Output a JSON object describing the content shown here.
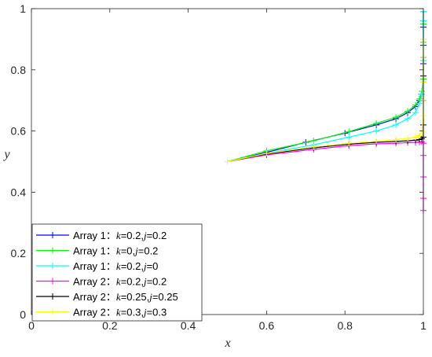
{
  "chart_data": {
    "type": "line",
    "xlabel": "x",
    "ylabel": "y",
    "xlim": [
      0,
      1
    ],
    "ylim": [
      0,
      1
    ],
    "xticks": [
      "0",
      "0.2",
      "0.4",
      "0.6",
      "0.8",
      "1"
    ],
    "yticks": [
      "0",
      "0.2",
      "0.4",
      "0.6",
      "0.8",
      "1"
    ],
    "grid": false,
    "legend_position": "bottom-left",
    "series": [
      {
        "legend": {
          "prefix": "Array 1：",
          "params": [
            [
              "k",
              "=0.2,"
            ],
            [
              "j",
              "=0.2"
            ]
          ]
        },
        "color": "#0000ff",
        "x": [
          0.5,
          0.6,
          0.7,
          0.8,
          0.88,
          0.93,
          0.96,
          0.98,
          0.99,
          0.995,
          1.0,
          1.0,
          1.0,
          1.0,
          1.0
        ],
        "y": [
          0.5,
          0.53,
          0.563,
          0.593,
          0.62,
          0.64,
          0.66,
          0.68,
          0.7,
          0.72,
          0.76,
          0.82,
          0.88,
          0.94,
          0.99
        ]
      },
      {
        "legend": {
          "prefix": "Array 1：",
          "params": [
            [
              "k",
              "=0,"
            ],
            [
              "j",
              "=0.2"
            ]
          ]
        },
        "color": "#00ff00",
        "x": [
          0.5,
          0.6,
          0.72,
          0.81,
          0.88,
          0.93,
          0.96,
          0.98,
          0.99,
          0.996,
          1.0,
          1.0,
          1.0,
          1.0,
          1.0
        ],
        "y": [
          0.5,
          0.535,
          0.568,
          0.598,
          0.625,
          0.645,
          0.665,
          0.685,
          0.705,
          0.73,
          0.77,
          0.83,
          0.89,
          0.95,
          0.99
        ]
      },
      {
        "legend": {
          "prefix": "Array 1：",
          "params": [
            [
              "k",
              "=0.2,"
            ],
            [
              "j",
              "=0"
            ]
          ]
        },
        "color": "#00ffff",
        "x": [
          0.5,
          0.6,
          0.72,
          0.81,
          0.88,
          0.93,
          0.96,
          0.98,
          0.99,
          0.996,
          1.0,
          1.0,
          1.0,
          1.0,
          1.0
        ],
        "y": [
          0.5,
          0.527,
          0.555,
          0.58,
          0.6,
          0.62,
          0.64,
          0.66,
          0.69,
          0.72,
          0.76,
          0.83,
          0.9,
          0.96,
          0.99
        ]
      },
      {
        "legend": {
          "prefix": "Array 2：",
          "params": [
            [
              "k",
              "=0.2,"
            ],
            [
              "j",
              "=0.2"
            ]
          ]
        },
        "color": "#ff00ff",
        "x": [
          0.5,
          0.6,
          0.72,
          0.81,
          0.88,
          0.93,
          0.96,
          0.98,
          0.99,
          0.996,
          1.0,
          1.0,
          1.0,
          1.0,
          1.0
        ],
        "y": [
          0.5,
          0.522,
          0.54,
          0.552,
          0.558,
          0.56,
          0.562,
          0.563,
          0.564,
          0.565,
          0.56,
          0.52,
          0.45,
          0.38,
          0.34
        ]
      },
      {
        "legend": {
          "prefix": "Array 2：",
          "params": [
            [
              "k",
              "=0.25,"
            ],
            [
              "j",
              "=0.25"
            ]
          ]
        },
        "color": "#000000",
        "x": [
          0.5,
          0.6,
          0.72,
          0.81,
          0.88,
          0.93,
          0.96,
          0.98,
          0.99,
          0.996,
          1.0,
          1.0,
          1.0,
          1.0,
          1.0
        ],
        "y": [
          0.5,
          0.525,
          0.545,
          0.557,
          0.563,
          0.566,
          0.568,
          0.57,
          0.572,
          0.575,
          0.58,
          0.62,
          0.7,
          0.78,
          0.84
        ]
      },
      {
        "legend": {
          "prefix": "Array 2：",
          "params": [
            [
              "k",
              "=0.3,"
            ],
            [
              "j",
              "=0.3"
            ]
          ]
        },
        "color": "#ffff00",
        "x": [
          0.5,
          0.6,
          0.72,
          0.81,
          0.88,
          0.93,
          0.96,
          0.98,
          0.99,
          0.996,
          1.0,
          1.0,
          1.0,
          1.0,
          1.0
        ],
        "y": [
          0.5,
          0.527,
          0.548,
          0.56,
          0.567,
          0.572,
          0.576,
          0.58,
          0.585,
          0.6,
          0.65,
          0.7,
          0.76,
          0.84,
          0.9
        ]
      }
    ]
  }
}
